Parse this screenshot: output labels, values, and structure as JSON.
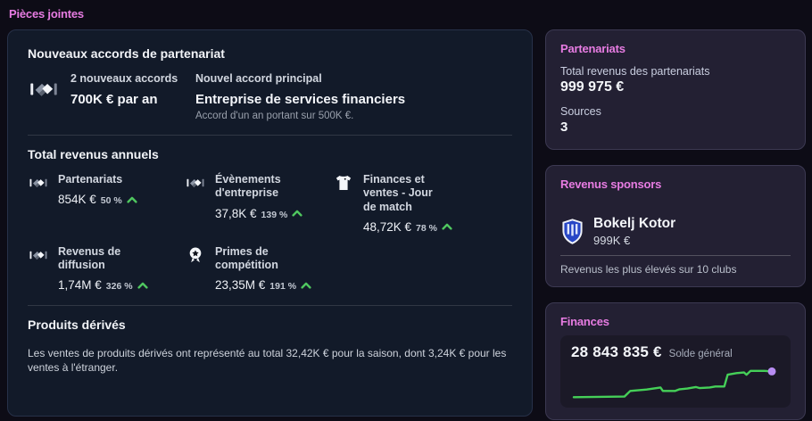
{
  "page": {
    "title": "Pièces jointes"
  },
  "left_card": {
    "new_deals": {
      "heading": "Nouveaux accords de partenariat",
      "count_label": "2 nouveaux accords",
      "count_value": "700K € par an",
      "main_label": "Nouvel accord principal",
      "main_value": "Entreprise de services financiers",
      "main_note": "Accord d'un an portant sur 500K €."
    },
    "annual": {
      "heading": "Total revenus annuels",
      "stats": [
        {
          "icon": "handshake-icon",
          "label": "Partenariats",
          "value": "854K €",
          "percent": "50 %",
          "trend": "up"
        },
        {
          "icon": "handshake-icon",
          "label": "Évènements d'entreprise",
          "value": "37,8K €",
          "percent": "139 %",
          "trend": "up"
        },
        {
          "icon": "tshirt-icon",
          "label": "Finances et ventes - Jour de match",
          "value": "48,72K €",
          "percent": "78 %",
          "trend": "up"
        },
        {
          "icon": "handshake-icon",
          "label": "Revenus de diffusion",
          "value": "1,74M €",
          "percent": "326 %",
          "trend": "up"
        },
        {
          "icon": "medal-icon",
          "label": "Primes de compétition",
          "value": "23,35M €",
          "percent": "191 %",
          "trend": "up"
        }
      ]
    },
    "merchandise": {
      "heading": "Produits dérivés",
      "text": "Les ventes de produits dérivés ont représenté au total 32,42K € pour la saison, dont 3,24K € pour les ventes à l'étranger."
    }
  },
  "sidebar": {
    "partnerships": {
      "title": "Partenariats",
      "total_label": "Total revenus des partenariats",
      "total_value": "999 975 €",
      "sources_label": "Sources",
      "sources_value": "3"
    },
    "sponsors": {
      "title": "Revenus sponsors",
      "badge_icon": "club-crest-icon",
      "club_name": "Bokelj Kotor",
      "club_value": "999K €",
      "caption": "Revenus les plus élevés sur 10 clubs"
    },
    "finances": {
      "title": "Finances",
      "balance_value": "28 843 835 €",
      "balance_label": "Solde général"
    }
  },
  "colors": {
    "accent_pink": "#e77ce2",
    "positive_green": "#4fc75f",
    "chart_line": "#45d058",
    "chart_endpoint": "#b78cf2"
  },
  "chart_data": {
    "type": "line",
    "title": "Solde général",
    "end_value_label": "28 843 835 €",
    "xlabel": "",
    "ylabel": "",
    "grid": false,
    "legend": "none",
    "note": "sparkline of club balance over the season, no axes shown, values normalized 0-100",
    "points": [
      [
        0,
        5
      ],
      [
        25.6,
        7
      ],
      [
        28.5,
        25
      ],
      [
        36.8,
        29.5
      ],
      [
        43.8,
        36
      ],
      [
        45,
        25
      ],
      [
        51.2,
        25
      ],
      [
        53.3,
        30
      ],
      [
        57.4,
        32.5
      ],
      [
        61.6,
        37.5
      ],
      [
        63.6,
        34
      ],
      [
        68.6,
        36
      ],
      [
        71.5,
        39
      ],
      [
        76,
        39
      ],
      [
        77.7,
        77
      ],
      [
        82.2,
        82
      ],
      [
        86,
        84
      ],
      [
        87.2,
        77
      ],
      [
        89.3,
        89
      ],
      [
        96.3,
        89
      ],
      [
        100,
        87.5
      ]
    ],
    "line_color": "#45d058",
    "endpoint_color": "#b78cf2"
  }
}
